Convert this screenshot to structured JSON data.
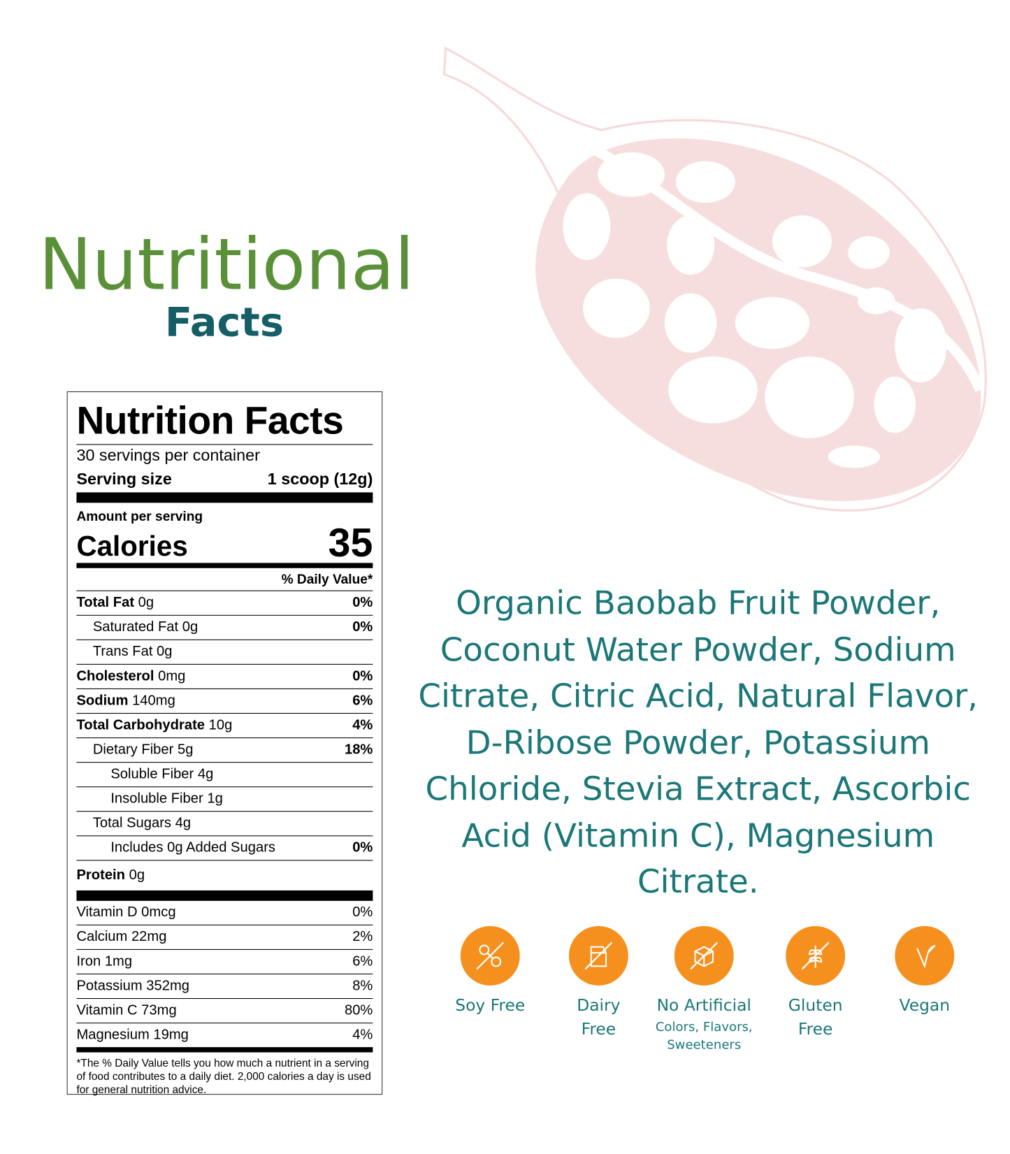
{
  "header": {
    "title": "Nutritional",
    "subtitle": "Facts"
  },
  "label": {
    "title": "Nutrition Facts",
    "servings": "30 servings per container",
    "serving_size_label": "Serving size",
    "serving_size": "1 scoop (12g)",
    "amount_per_serving": "Amount per serving",
    "calories_label": "Calories",
    "calories": "35",
    "dv_header": "% Daily Value*",
    "nutrients": [
      {
        "name": "Total Fat",
        "amount": "0g",
        "dv": "0%"
      },
      {
        "name": "Saturated Fat",
        "amount": "0g",
        "dv": "0%"
      },
      {
        "name": "Trans Fat",
        "amount": "0g"
      },
      {
        "name": "Cholesterol",
        "amount": "0mg",
        "dv": "0%"
      },
      {
        "name": "Sodium",
        "amount": "140mg",
        "dv": "6%"
      },
      {
        "name": "Total Carbohydrate",
        "amount": "10g",
        "dv": "4%"
      },
      {
        "name": "Dietary Fiber",
        "amount": "5g",
        "dv": "18%"
      },
      {
        "name": "Soluble Fiber",
        "amount": "4g"
      },
      {
        "name": "Insoluble Fiber",
        "amount": "1g"
      },
      {
        "name": "Total Sugars",
        "amount": "4g"
      },
      {
        "name": "Includes 0g Added Sugars",
        "dv": "0%"
      },
      {
        "name": "Protein",
        "amount": "0g"
      }
    ],
    "vitamins": [
      {
        "name": "Vitamin D 0mcg",
        "dv": "0%"
      },
      {
        "name": "Calcium 22mg",
        "dv": "2%"
      },
      {
        "name": "Iron 1mg",
        "dv": "6%"
      },
      {
        "name": "Potassium 352mg",
        "dv": "8%"
      },
      {
        "name": "Vitamin C 73mg",
        "dv": "80%"
      },
      {
        "name": "Magnesium 19mg",
        "dv": "4%"
      }
    ],
    "footnote": "*The % Daily Value tells you how much a nutrient in a serving of food contributes to a daily diet. 2,000 calories a day is used for general nutrition advice."
  },
  "ingredients": [
    "Organic Baobab Fruit Powder,",
    "Coconut Water Powder, Sodium",
    "Citrate, Citric Acid, Natural Flavor,",
    "D-Ribose Powder, Potassium",
    "Chloride,  Stevia Extract, Ascorbic",
    "Acid (Vitamin C), Magnesium Citrate."
  ],
  "badges": [
    {
      "label": "Soy Free"
    },
    {
      "label": "Dairy",
      "label2": "Free"
    },
    {
      "label": "No Artificial",
      "sublabel": "Colors, Flavors,",
      "sublabel2": "Sweeteners"
    },
    {
      "label": "Gluten",
      "label2": "Free"
    },
    {
      "label": "Vegan"
    }
  ]
}
